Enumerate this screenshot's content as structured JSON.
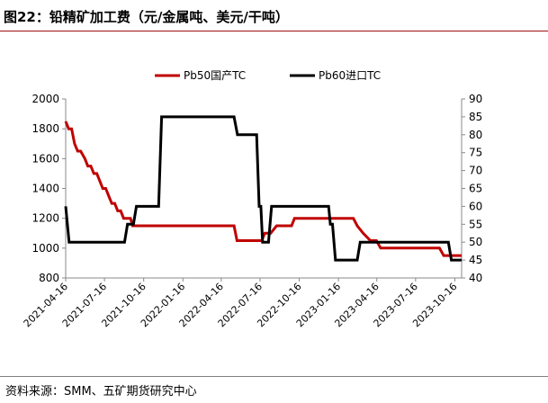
{
  "figure": {
    "title": "图22：铅精矿加工费（元/金属吨、美元/干吨）",
    "source": "资料来源：SMM、五矿期货研究中心"
  },
  "chart_data": {
    "type": "line",
    "title": "",
    "x_axis": {
      "start": "2021-04-16",
      "end": "2023-11-01",
      "tick_labels": [
        "2021-04-16",
        "2021-07-16",
        "2021-10-16",
        "2022-01-16",
        "2022-04-16",
        "2022-07-16",
        "2022-10-16",
        "2023-01-16",
        "2023-04-16",
        "2023-07-16",
        "2023-10-16"
      ]
    },
    "y_left": {
      "min": 800,
      "max": 2000,
      "ticks": [
        800,
        1000,
        1200,
        1400,
        1600,
        1800,
        2000
      ]
    },
    "y_right": {
      "min": 40,
      "max": 90,
      "ticks": [
        40,
        45,
        50,
        55,
        60,
        65,
        70,
        75,
        80,
        85,
        90
      ]
    },
    "legend_position": "top-center",
    "grid": false,
    "series": [
      {
        "name": "Pb50国产TC",
        "axis": "left",
        "color": "#c00000",
        "points": [
          [
            "2021-04-16",
            1850
          ],
          [
            "2021-04-23",
            1800
          ],
          [
            "2021-04-30",
            1800
          ],
          [
            "2021-05-07",
            1700
          ],
          [
            "2021-05-14",
            1650
          ],
          [
            "2021-05-21",
            1650
          ],
          [
            "2021-05-31",
            1600
          ],
          [
            "2021-06-07",
            1550
          ],
          [
            "2021-06-14",
            1550
          ],
          [
            "2021-06-21",
            1500
          ],
          [
            "2021-06-28",
            1500
          ],
          [
            "2021-07-05",
            1450
          ],
          [
            "2021-07-12",
            1400
          ],
          [
            "2021-07-19",
            1400
          ],
          [
            "2021-07-26",
            1350
          ],
          [
            "2021-08-02",
            1300
          ],
          [
            "2021-08-09",
            1300
          ],
          [
            "2021-08-16",
            1250
          ],
          [
            "2021-08-23",
            1250
          ],
          [
            "2021-08-30",
            1200
          ],
          [
            "2021-09-15",
            1200
          ],
          [
            "2021-09-20",
            1150
          ],
          [
            "2021-10-01",
            1150
          ],
          [
            "2022-05-16",
            1150
          ],
          [
            "2022-05-23",
            1050
          ],
          [
            "2022-07-20",
            1050
          ],
          [
            "2022-07-27",
            1100
          ],
          [
            "2022-08-10",
            1100
          ],
          [
            "2022-08-24",
            1150
          ],
          [
            "2022-09-28",
            1150
          ],
          [
            "2022-10-05",
            1200
          ],
          [
            "2023-02-20",
            1200
          ],
          [
            "2023-03-01",
            1150
          ],
          [
            "2023-03-15",
            1100
          ],
          [
            "2023-04-01",
            1050
          ],
          [
            "2023-04-15",
            1050
          ],
          [
            "2023-04-25",
            1000
          ],
          [
            "2023-09-10",
            1000
          ],
          [
            "2023-09-20",
            950
          ],
          [
            "2023-11-01",
            950
          ]
        ]
      },
      {
        "name": "Pb60进口TC",
        "axis": "right",
        "color": "#000000",
        "points": [
          [
            "2021-04-16",
            60
          ],
          [
            "2021-04-24",
            50
          ],
          [
            "2021-09-01",
            50
          ],
          [
            "2021-09-08",
            55
          ],
          [
            "2021-09-22",
            55
          ],
          [
            "2021-09-29",
            60
          ],
          [
            "2021-11-20",
            60
          ],
          [
            "2021-11-27",
            85
          ],
          [
            "2022-05-16",
            85
          ],
          [
            "2022-05-24",
            80
          ],
          [
            "2022-07-08",
            80
          ],
          [
            "2022-07-14",
            60
          ],
          [
            "2022-07-18",
            60
          ],
          [
            "2022-07-22",
            50
          ],
          [
            "2022-08-05",
            50
          ],
          [
            "2022-08-12",
            60
          ],
          [
            "2022-12-24",
            60
          ],
          [
            "2022-12-28",
            55
          ],
          [
            "2023-01-02",
            55
          ],
          [
            "2023-01-09",
            45
          ],
          [
            "2023-03-01",
            45
          ],
          [
            "2023-03-08",
            50
          ],
          [
            "2023-10-01",
            50
          ],
          [
            "2023-10-08",
            45
          ],
          [
            "2023-11-01",
            45
          ]
        ]
      }
    ]
  }
}
